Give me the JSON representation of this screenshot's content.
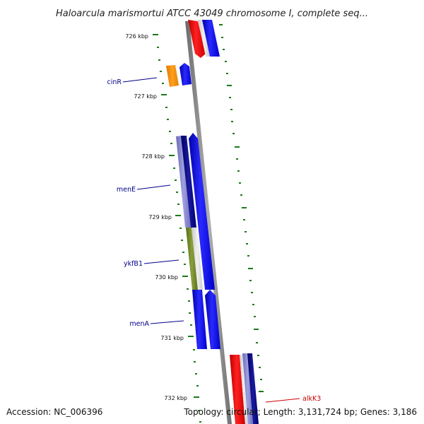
{
  "title": "Haloarcula marismortui ATCC 43049 chromosome I, complete seq...",
  "ticks": [
    "726 kbp",
    "727 kbp",
    "728 kbp",
    "729 kbp",
    "730 kbp",
    "731 kbp",
    "732 kbp"
  ],
  "genes": [
    {
      "name": "cinR",
      "color": "#00008b"
    },
    {
      "name": "menE",
      "color": "#00008b"
    },
    {
      "name": "ykfB1",
      "color": "#00008b"
    },
    {
      "name": "menA",
      "color": "#00008b"
    },
    {
      "name": "alkK3",
      "color": "#cc0000"
    }
  ],
  "footer": {
    "accession": "Accession: NC_006396",
    "summary": "Topology: circular; Length: 3,131,724 bp; Genes: 3,186"
  },
  "colors": {
    "backbone": "#8c8c8c",
    "tick": "#1a7a1a",
    "forward_cds": "#0000ee",
    "reverse_cds": "#ee0000",
    "dark_cds": "#000080",
    "lavender_cds": "#8080cc",
    "orange_cds": "#ff8c00",
    "green_cds": "#6b8e23"
  }
}
